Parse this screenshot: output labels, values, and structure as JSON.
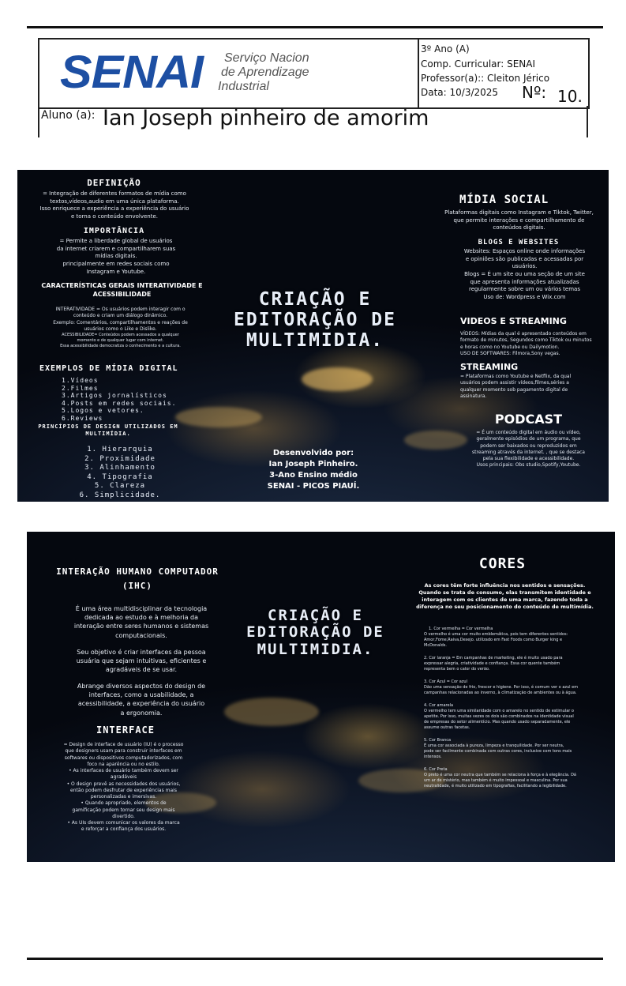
{
  "header": {
    "logo_text": "SENAI",
    "logo_sub": [
      "Serviço Nacion",
      "de Aprendizage",
      "Industrial"
    ],
    "ano": "3º Ano (A)",
    "componente": "Comp. Curricular:  SENAI",
    "professor": " Professor(a):: Cleiton Jérico",
    "data": "Data: 10/3/2025",
    "numero_label": "Nº:",
    "numero_value": "10.",
    "aluno_label": "Aluno (a):",
    "aluno_nome": "Ian Joseph pinheiro de amorim"
  },
  "slide1": {
    "title": [
      "CRIAÇÃO E",
      "EDITORAÇÃO DE",
      "MULTIMIDIA."
    ],
    "definicao_title": "DEFINIÇÃO",
    "definicao_text": [
      "=  Integração de diferentes formatos de mídia como",
      "textos,vídeos,audio em uma única plataforma.",
      "Isso enriquece a experiência a experiência do usuário",
      "e torna o conteúdo envolvente."
    ],
    "importancia_title": "IMPORTÂNCIA",
    "importancia_text": [
      "= Permite a liberdade global de usuários",
      "da internet criarem e compartilharem suas",
      "mídias digitais.",
      "principalmente em redes sociais como",
      "Instagram e Youtube."
    ],
    "caracteristicas_title": [
      "CARACTERÍSTICAS GERAIS  INTERATIVIDADE E",
      "ACESSIBILIDADE"
    ],
    "caracteristicas_text": [
      "INTERATIVIDADE = Os usuários podem interagir com o",
      "conteúdo e criam um diálogo dinâmico.",
      "Exemplo: Comentários, compartilhamentos e reações de",
      "usuários como o Like e Dislike.",
      "ACESSIBILIDADE= Conteúdos podem acessados a qualquer",
      "momento e de qualquer lugar com internet.",
      "Essa acessibilidade democratiza o conhecimento e a cultura."
    ],
    "exemplos_title": "EXEMPLOS DE MÍDIA DIGITAL",
    "exemplos_list": [
      "1.Vídeos",
      "2.Filmes",
      "3.Artigos jornalísticos",
      "4.Posts em redes sociais.",
      "5.Logos e vetores.",
      "6.Reviews"
    ],
    "principios_title": [
      "PRINCÍPIOS DE DESIGN UTILIZADOS EM",
      "MULTIMÍDIA."
    ],
    "principios_list": [
      "1. Hierarquia",
      "2. Proximidade",
      "3. Alinhamento",
      "4. Tipografia",
      "5. Clareza",
      "6. Simplicidade."
    ],
    "credits": [
      "Desenvolvido por:",
      "Ian Joseph Pinheiro.",
      "3-Ano Ensino médio",
      "SENAI  - PICOS PIAUÍ."
    ],
    "midia_title": "MÍDIA SOCIAL",
    "midia_text": [
      "Plataformas digitais como Instagram e Tiktok, Twitter,",
      "que permite interações e compartilhamento de",
      "conteúdos digitais."
    ],
    "blogs_title": "BLOGS E WEBSITES",
    "blogs_text": [
      "Websites: Espaços online onde informações",
      "e opiniões são publicadas e acessadas por",
      "usuários.",
      "Blogs =  É um site ou uma seção de um site",
      "que apresenta informações atualizadas",
      "regularmente sobre um ou vários temas",
      "Uso de: Wordpress e Wix.com"
    ],
    "videos_title": "VIDEOS E STREAMING",
    "videos_text": [
      "VÍDEOS: Mídias da qual é apresentado conteúdos em",
      "formato de minutos, Segundos como Tiktok ou minutos",
      "e horas como no Youtube ou Dailymotion.",
      "USO DE SOFTWARES: Filmora,Sony vegas."
    ],
    "streaming_title": "STREAMING",
    "streaming_text": [
      "= Plataformas como Youtube e Netflix, da qual",
      "usuários  podem  assistir  vídeos,filmes,séries  a",
      "qualquer  momento  sob  pagamento  digital  de",
      "assinatura."
    ],
    "podcast_title": "PODCAST",
    "podcast_text": [
      "= É um conteúdo digital em áudio ou vídeo,",
      "geralmente episódios de um programa, que",
      "podem ser baixados ou reproduzidos em",
      "streaming através da internet. , que se destaca",
      "pela sua flexibilidade e acessibilidade.",
      "Usos principais: Obs studio,Spotify,Youtube."
    ]
  },
  "slide2": {
    "title": [
      "CRIAÇÃO E",
      "EDITORAÇÃO DE",
      "MULTIMIDIA."
    ],
    "ihc_title": [
      "INTERAÇÃO HUMANO COMPUTADOR",
      "(IHC)"
    ],
    "ihc_p1": [
      "É uma área multidisciplinar da tecnologia",
      "dedicada ao estudo e à melhoria da",
      "interação entre seres humanos e sistemas",
      "computacionais."
    ],
    "ihc_p2": [
      "Seu objetivo é criar interfaces da pessoa",
      "usuária que sejam intuitivas, eficientes e",
      "agradáveis de se usar."
    ],
    "ihc_p3": [
      "Abrange diversos aspectos do design de",
      "interfaces, como a usabilidade, a",
      "acessibilidade, a experiência do usuário",
      "a ergonomia."
    ],
    "interface_title": "INTERFACE",
    "interface_text": [
      "= Design de interface de usuário (IU) é o processo",
      "que designers usam para construir interfaces em",
      "softwares ou dispositivos computadorizados, com",
      "foco na aparência ou no estilo.",
      "•  As interfaces de usuário também devem ser",
      "agradáveis",
      "•  O design prevê as necessidades dos usuários,",
      "então podem desfrutar de experiências mais",
      "personalizadas e imersivas.",
      "•  Quando apropriado, elementos de",
      "gamificação podem tornar seu design mais",
      "divertido.",
      "•  As UIs devem comunicar os valores da marca",
      "e reforçar a confiança dos usuários."
    ],
    "cores_title": "CORES",
    "cores_intro": [
      "As cores têm forte influência nos sentidos e sensações.",
      "Quando se trata de consumo, elas transmitem identidade e",
      "interagem com os clientes de uma marca, fazendo toda a",
      "diferença no seu posicionamento do conteúdo de multimídia."
    ],
    "cores_items": [
      [
        "1. Cor vermelha = Cor vermelha",
        "O vermelho é uma cor muito emblemática, pois tem diferentes sentidos:",
        "Amor,Fome,Raiva,Desejo. utilizado em Fast Foods como Burger king e",
        "McDonalds."
      ],
      [
        "2. Cor laranja = Em campanhas de marketing, ele é muito usado para",
        "expressar alegria, criatividade e confiança. Essa cor quente também",
        "representa bem o calor do verão."
      ],
      [
        "3. Cor Azul = Cor azul",
        "Dão uma sensação de frio, frescor e higiene. Por isso, é comum ver o azul em",
        "campanhas relacionadas ao inverno, à climatização de ambientes ou à água."
      ],
      [
        "4. Cor amarela",
        "O vermelho tem uma similaridade com o amarelo no sentido de estimular o",
        "apetite. Por isso, muitas vezes os dois são combinados na identidade visual",
        "de empresas do setor alimentício. Mas quando usado separadamente, ele",
        "assume outras facetas."
      ],
      [
        "5. Cor Branca",
        "É uma cor associada à pureza, limpeza e tranquilidade. Por ser neutra,",
        "pode ser facilmente combinada com outras cores, inclusive com tons mais",
        "intensos."
      ],
      [
        "6. Cor Preta",
        "O preto é uma cor neutra que também se relaciona à força e à elegância. Dá",
        "um ar de mistério, mas também é muito impessoal e masculina. Por sua",
        "neutralidade, é muito utilizado em tipografias, facilitando a legibilidade."
      ]
    ]
  }
}
